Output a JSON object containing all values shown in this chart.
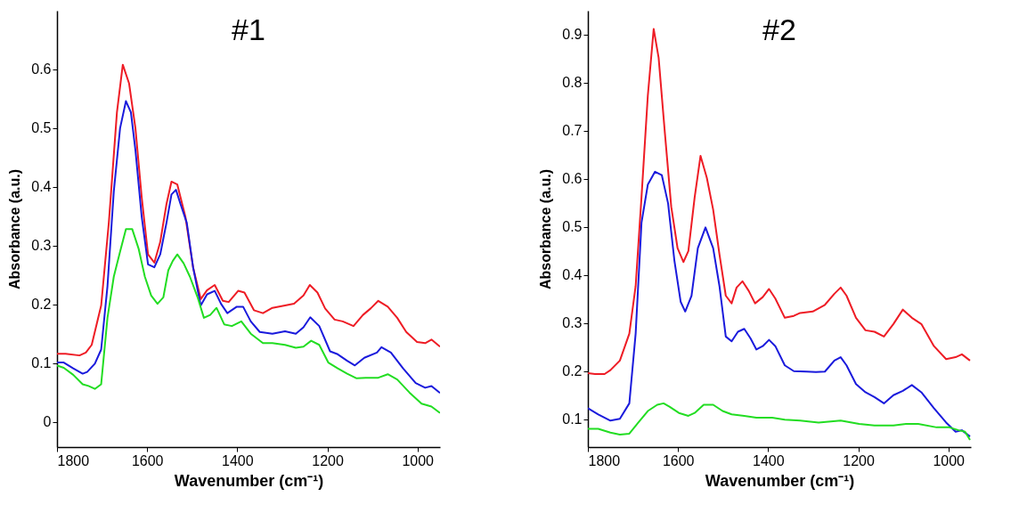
{
  "chart_data": [
    {
      "type": "line",
      "title": "#1",
      "xlabel": "Wavenumber (cm⁻¹)",
      "ylabel": "Absorbance (a.u.)",
      "xlim": [
        1800,
        950
      ],
      "ylim": [
        -0.043,
        0.7
      ],
      "xticks": [
        1800,
        1600,
        1400,
        1200,
        1000
      ],
      "yticks": [
        0,
        0.1,
        0.2,
        0.3,
        0.4,
        0.5,
        0.6
      ],
      "series": [
        {
          "color": "#ee1c25",
          "x": [
            1800,
            1781,
            1750,
            1736,
            1723,
            1702,
            1685,
            1667,
            1654,
            1640,
            1626,
            1612,
            1598,
            1584,
            1571,
            1557,
            1546,
            1533,
            1515,
            1498,
            1481,
            1467,
            1450,
            1432,
            1419,
            1398,
            1384,
            1363,
            1343,
            1322,
            1294,
            1274,
            1253,
            1239,
            1222,
            1205,
            1184,
            1166,
            1142,
            1121,
            1104,
            1087,
            1066,
            1045,
            1025,
            1001,
            983,
            969,
            950
          ],
          "values": [
            0.116,
            0.116,
            0.113,
            0.118,
            0.131,
            0.198,
            0.339,
            0.527,
            0.608,
            0.576,
            0.5,
            0.382,
            0.285,
            0.271,
            0.306,
            0.371,
            0.409,
            0.404,
            0.349,
            0.263,
            0.209,
            0.224,
            0.233,
            0.206,
            0.204,
            0.223,
            0.22,
            0.19,
            0.185,
            0.194,
            0.198,
            0.201,
            0.215,
            0.233,
            0.22,
            0.193,
            0.174,
            0.171,
            0.163,
            0.182,
            0.193,
            0.206,
            0.196,
            0.177,
            0.153,
            0.136,
            0.134,
            0.14,
            0.128
          ]
        },
        {
          "color": "#1a1adc",
          "x": [
            1800,
            1785,
            1764,
            1743,
            1733,
            1716,
            1702,
            1688,
            1674,
            1660,
            1647,
            1636,
            1626,
            1612,
            1598,
            1584,
            1571,
            1557,
            1546,
            1536,
            1526,
            1512,
            1498,
            1481,
            1467,
            1450,
            1436,
            1422,
            1401,
            1387,
            1370,
            1350,
            1322,
            1294,
            1270,
            1253,
            1238,
            1218,
            1194,
            1177,
            1156,
            1139,
            1118,
            1090,
            1080,
            1059,
            1032,
            1004,
            983,
            969,
            950
          ],
          "values": [
            0.101,
            0.101,
            0.091,
            0.082,
            0.085,
            0.099,
            0.123,
            0.231,
            0.392,
            0.5,
            0.546,
            0.527,
            0.463,
            0.349,
            0.268,
            0.263,
            0.285,
            0.339,
            0.387,
            0.395,
            0.371,
            0.339,
            0.263,
            0.198,
            0.217,
            0.223,
            0.201,
            0.185,
            0.196,
            0.196,
            0.171,
            0.153,
            0.15,
            0.154,
            0.15,
            0.161,
            0.178,
            0.163,
            0.12,
            0.115,
            0.104,
            0.096,
            0.109,
            0.118,
            0.127,
            0.118,
            0.091,
            0.066,
            0.058,
            0.061,
            0.049
          ]
        },
        {
          "color": "#22dd22",
          "x": [
            1800,
            1785,
            1764,
            1743,
            1730,
            1716,
            1702,
            1688,
            1674,
            1660,
            1647,
            1633,
            1619,
            1605,
            1591,
            1577,
            1564,
            1553,
            1543,
            1533,
            1519,
            1505,
            1488,
            1474,
            1460,
            1446,
            1429,
            1412,
            1391,
            1370,
            1343,
            1322,
            1294,
            1270,
            1253,
            1236,
            1218,
            1198,
            1177,
            1156,
            1135,
            1115,
            1087,
            1066,
            1045,
            1018,
            991,
            969,
            950
          ],
          "values": [
            0.096,
            0.092,
            0.08,
            0.064,
            0.061,
            0.056,
            0.064,
            0.177,
            0.247,
            0.29,
            0.328,
            0.328,
            0.295,
            0.247,
            0.215,
            0.201,
            0.212,
            0.258,
            0.274,
            0.285,
            0.27,
            0.247,
            0.212,
            0.177,
            0.182,
            0.194,
            0.166,
            0.163,
            0.171,
            0.15,
            0.134,
            0.134,
            0.131,
            0.126,
            0.128,
            0.138,
            0.131,
            0.101,
            0.091,
            0.082,
            0.074,
            0.075,
            0.075,
            0.081,
            0.072,
            0.05,
            0.031,
            0.026,
            0.015
          ]
        }
      ]
    },
    {
      "type": "line",
      "title": "#2",
      "xlabel": "Wavenumber (cm⁻¹)",
      "ylabel": "Absorbance (a.u.)",
      "xlim": [
        1800,
        950
      ],
      "ylim": [
        0.042,
        0.95
      ],
      "xticks": [
        1800,
        1600,
        1400,
        1200,
        1000
      ],
      "yticks": [
        0.1,
        0.2,
        0.3,
        0.4,
        0.5,
        0.6,
        0.7,
        0.8,
        0.9
      ],
      "series": [
        {
          "color": "#ee1c25",
          "x": [
            1800,
            1784,
            1763,
            1750,
            1729,
            1708,
            1694,
            1681,
            1667,
            1654,
            1643,
            1629,
            1615,
            1601,
            1588,
            1577,
            1563,
            1550,
            1536,
            1522,
            1508,
            1494,
            1481,
            1470,
            1457,
            1443,
            1429,
            1412,
            1398,
            1384,
            1363,
            1343,
            1329,
            1301,
            1274,
            1253,
            1239,
            1226,
            1205,
            1184,
            1164,
            1143,
            1122,
            1101,
            1081,
            1060,
            1032,
            1005,
            984,
            970,
            952
          ],
          "values": [
            0.196,
            0.194,
            0.194,
            0.202,
            0.222,
            0.278,
            0.377,
            0.562,
            0.773,
            0.912,
            0.852,
            0.694,
            0.542,
            0.456,
            0.427,
            0.45,
            0.562,
            0.648,
            0.602,
            0.536,
            0.443,
            0.357,
            0.341,
            0.374,
            0.387,
            0.367,
            0.341,
            0.354,
            0.371,
            0.351,
            0.311,
            0.315,
            0.321,
            0.324,
            0.338,
            0.361,
            0.374,
            0.357,
            0.311,
            0.285,
            0.282,
            0.272,
            0.298,
            0.328,
            0.311,
            0.298,
            0.252,
            0.225,
            0.229,
            0.235,
            0.222
          ]
        },
        {
          "color": "#1a1adc",
          "x": [
            1800,
            1777,
            1750,
            1729,
            1708,
            1694,
            1681,
            1667,
            1651,
            1636,
            1622,
            1608,
            1594,
            1584,
            1570,
            1556,
            1539,
            1522,
            1508,
            1494,
            1481,
            1467,
            1453,
            1439,
            1426,
            1412,
            1398,
            1384,
            1363,
            1343,
            1315,
            1294,
            1274,
            1253,
            1239,
            1226,
            1205,
            1184,
            1164,
            1143,
            1122,
            1101,
            1081,
            1060,
            1032,
            1005,
            984,
            970,
            952
          ],
          "values": [
            0.123,
            0.11,
            0.097,
            0.101,
            0.133,
            0.278,
            0.509,
            0.588,
            0.615,
            0.608,
            0.549,
            0.43,
            0.344,
            0.324,
            0.357,
            0.456,
            0.499,
            0.456,
            0.377,
            0.272,
            0.262,
            0.282,
            0.288,
            0.268,
            0.245,
            0.252,
            0.265,
            0.252,
            0.212,
            0.2,
            0.199,
            0.198,
            0.199,
            0.222,
            0.229,
            0.212,
            0.173,
            0.156,
            0.146,
            0.133,
            0.15,
            0.159,
            0.171,
            0.156,
            0.123,
            0.093,
            0.074,
            0.077,
            0.064
          ]
        },
        {
          "color": "#22dd22",
          "x": [
            1800,
            1777,
            1750,
            1729,
            1708,
            1688,
            1667,
            1646,
            1632,
            1619,
            1598,
            1577,
            1563,
            1543,
            1522,
            1501,
            1481,
            1453,
            1426,
            1391,
            1363,
            1329,
            1288,
            1239,
            1198,
            1164,
            1122,
            1094,
            1067,
            1026,
            998,
            977,
            963,
            952
          ],
          "values": [
            0.08,
            0.08,
            0.072,
            0.068,
            0.07,
            0.093,
            0.117,
            0.13,
            0.133,
            0.126,
            0.113,
            0.107,
            0.113,
            0.13,
            0.13,
            0.117,
            0.11,
            0.107,
            0.103,
            0.103,
            0.099,
            0.097,
            0.093,
            0.097,
            0.09,
            0.087,
            0.087,
            0.09,
            0.09,
            0.083,
            0.083,
            0.077,
            0.074,
            0.057
          ]
        }
      ]
    }
  ]
}
